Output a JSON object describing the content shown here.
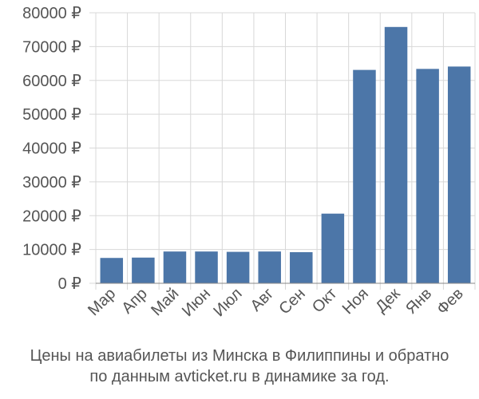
{
  "caption": {
    "line1": "Цены на авиабилеты из Минска в Филиппины и обратно",
    "line2": "по данным avticket.ru в динамике за год."
  },
  "chart_data": {
    "type": "bar",
    "title": "",
    "xlabel": "",
    "ylabel": "",
    "categories": [
      "Мар",
      "Апр",
      "Май",
      "Июн",
      "Июл",
      "Авг",
      "Сен",
      "Окт",
      "Ноя",
      "Дек",
      "Янв",
      "Фев"
    ],
    "values": [
      7500,
      7600,
      9400,
      9400,
      9300,
      9400,
      9200,
      20600,
      63100,
      75800,
      63400,
      64100
    ],
    "ylim": [
      0,
      80000
    ],
    "yticks": [
      0,
      10000,
      20000,
      30000,
      40000,
      50000,
      60000,
      70000,
      80000
    ],
    "ytick_labels": [
      "0 ₽",
      "10000 ₽",
      "20000 ₽",
      "30000 ₽",
      "40000 ₽",
      "50000 ₽",
      "60000 ₽",
      "70000 ₽",
      "80000 ₽"
    ],
    "grid": "on",
    "legend": "none",
    "bar_color": "#4c76a8"
  }
}
